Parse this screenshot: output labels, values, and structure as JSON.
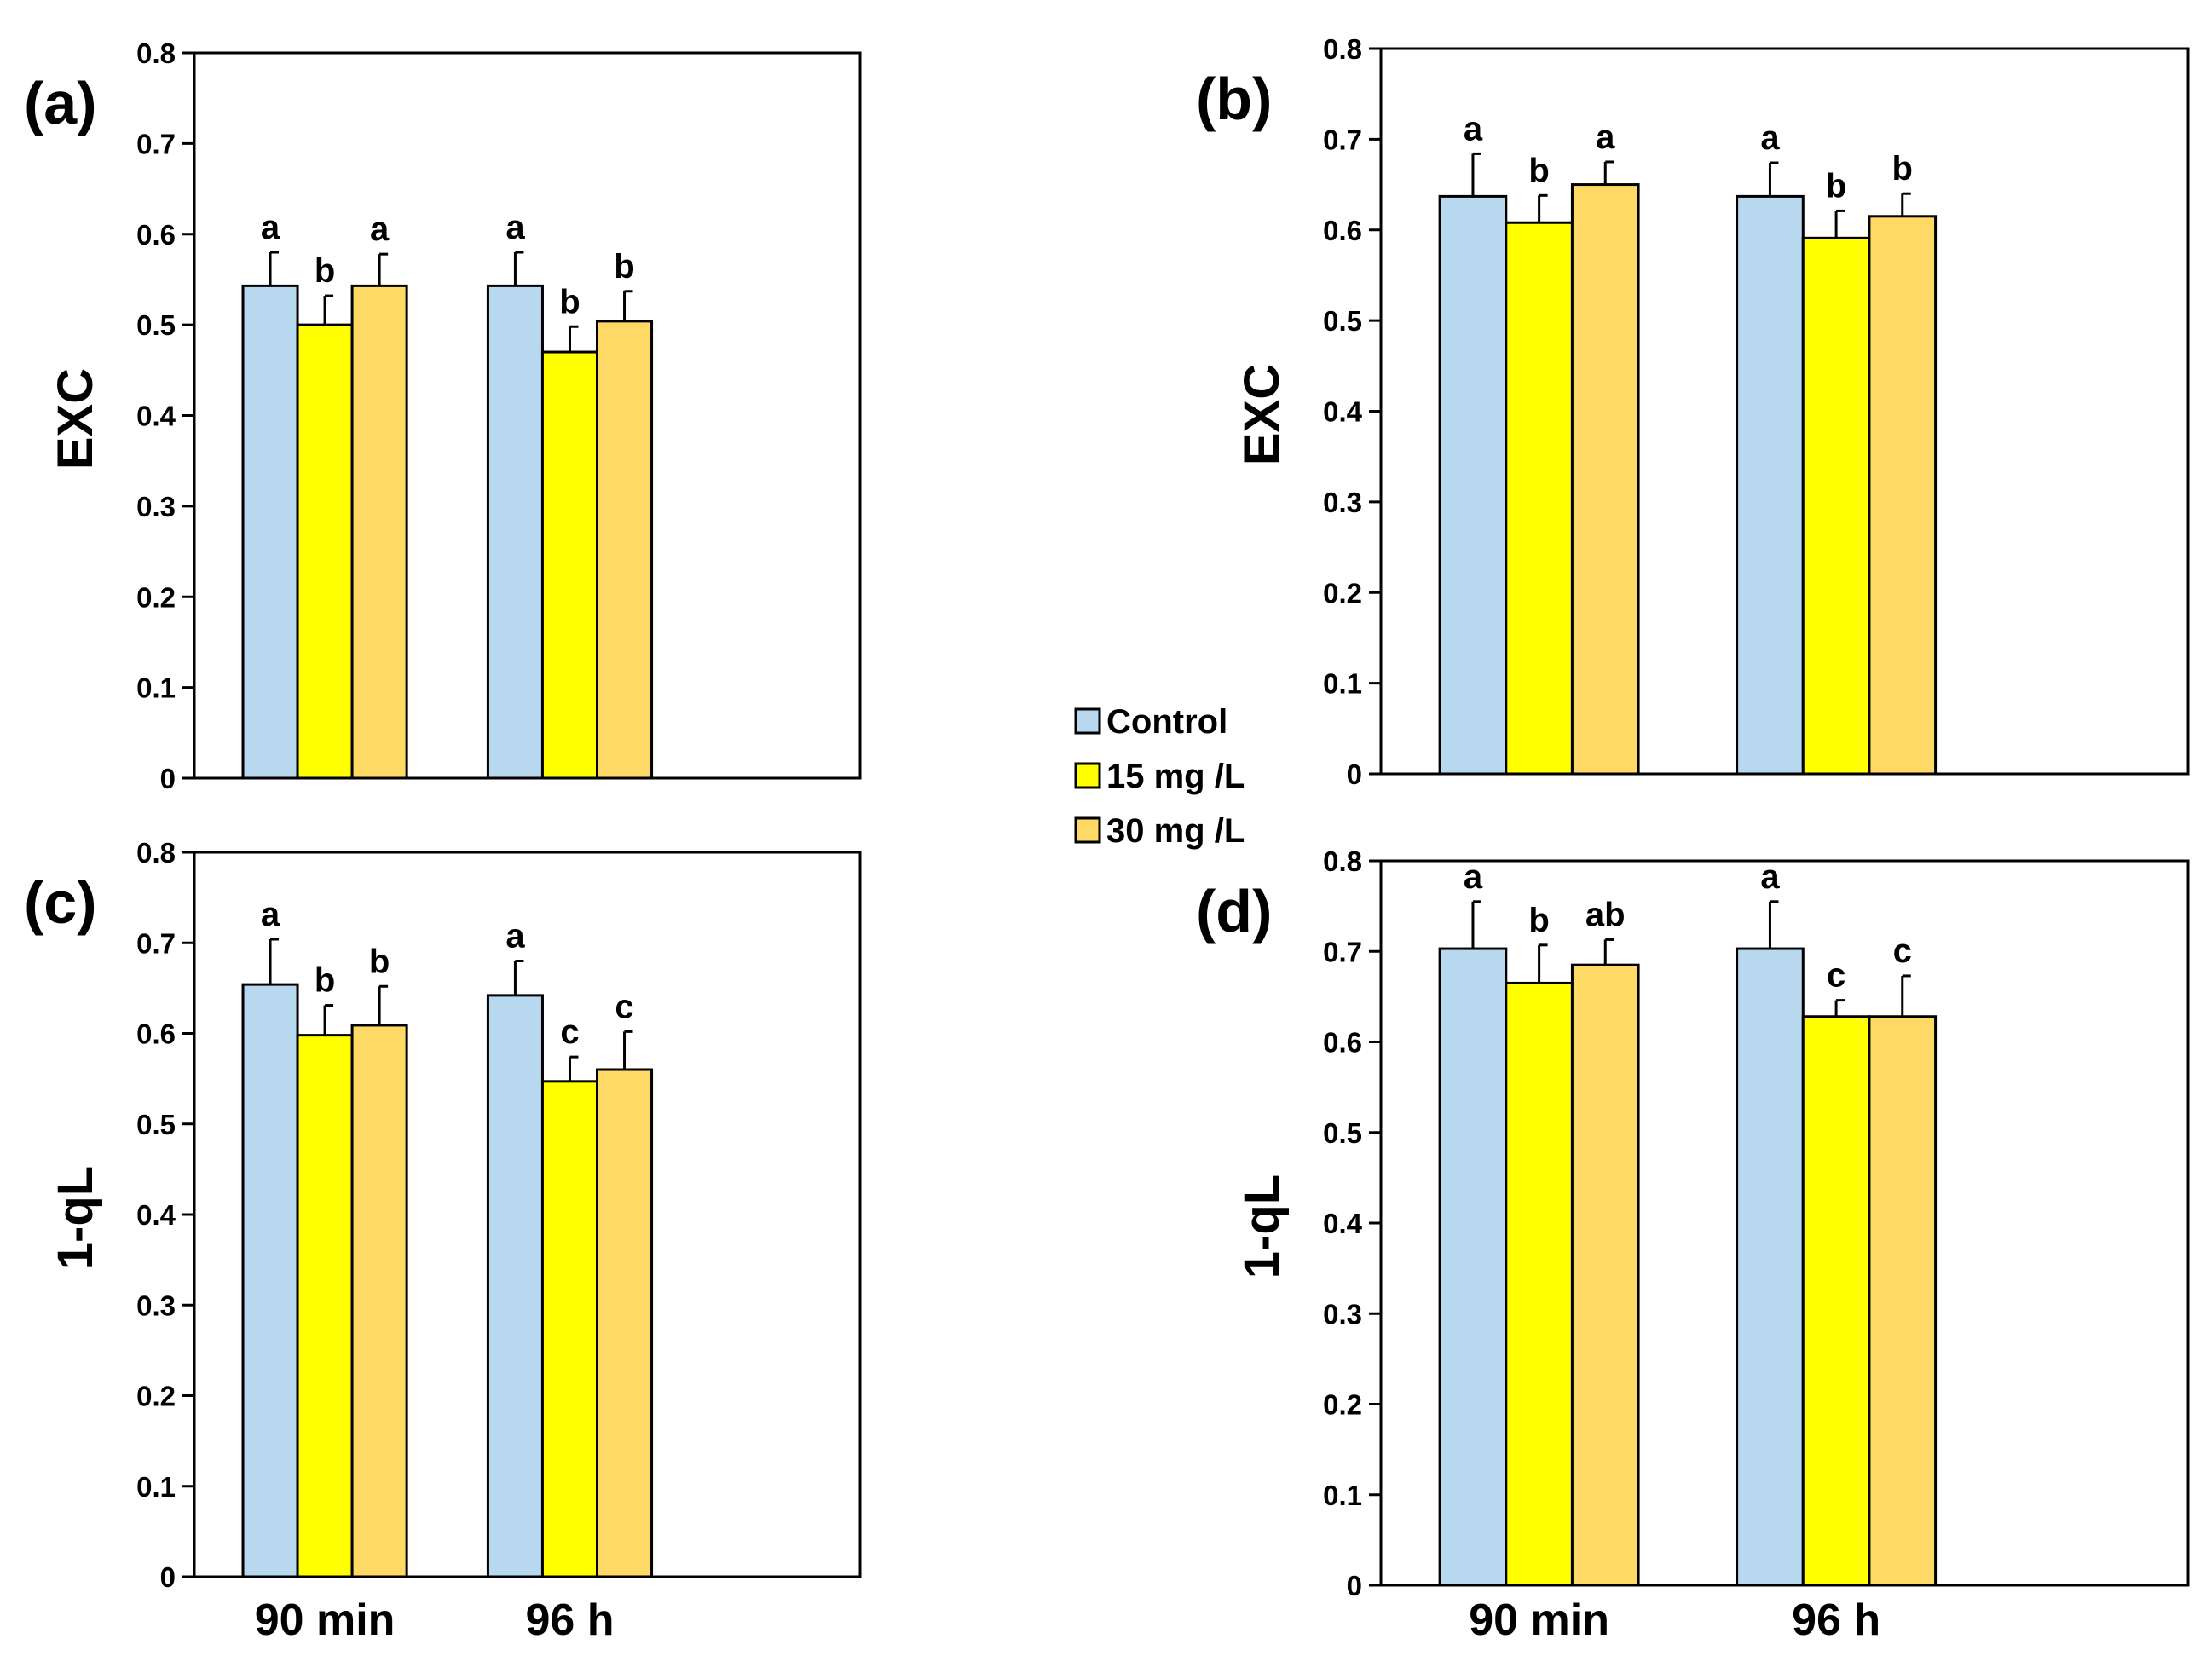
{
  "chart_data": [
    {
      "type": "bar",
      "panel_label": "(a)",
      "ylabel": "EXC",
      "categories": [
        "90 min",
        "96 h"
      ],
      "ylim": [
        0,
        0.8
      ],
      "yticks": [
        "0",
        "0.1",
        "0.2",
        "0.3",
        "0.4",
        "0.5",
        "0.6",
        "0.7",
        "0.8"
      ],
      "show_xticks": false,
      "series": [
        {
          "name": "Control",
          "values": [
            0.543,
            0.543
          ],
          "errors": [
            0.037,
            0.037
          ],
          "letters": [
            "a",
            "a"
          ]
        },
        {
          "name": "15 mg /L",
          "values": [
            0.5,
            0.47
          ],
          "errors": [
            0.032,
            0.028
          ],
          "letters": [
            "b",
            "b"
          ]
        },
        {
          "name": "30 mg /L",
          "values": [
            0.543,
            0.504
          ],
          "errors": [
            0.035,
            0.033
          ],
          "letters": [
            "a",
            "b"
          ]
        }
      ]
    },
    {
      "type": "bar",
      "panel_label": "(b)",
      "ylabel": "EXC",
      "categories": [
        "90 min",
        "96 h"
      ],
      "ylim": [
        0,
        0.8
      ],
      "yticks": [
        "0",
        "0.1",
        "0.2",
        "0.3",
        "0.4",
        "0.5",
        "0.6",
        "0.7",
        "0.8"
      ],
      "show_xticks": false,
      "series": [
        {
          "name": "Control",
          "values": [
            0.637,
            0.637
          ],
          "errors": [
            0.047,
            0.037
          ],
          "letters": [
            "a",
            "a"
          ]
        },
        {
          "name": "15 mg /L",
          "values": [
            0.608,
            0.591
          ],
          "errors": [
            0.03,
            0.03
          ],
          "letters": [
            "b",
            "b"
          ]
        },
        {
          "name": "30 mg /L",
          "values": [
            0.65,
            0.615
          ],
          "errors": [
            0.025,
            0.025
          ],
          "letters": [
            "a",
            "b"
          ]
        }
      ]
    },
    {
      "type": "bar",
      "panel_label": "(c)",
      "ylabel": "1-qL",
      "categories": [
        "90 min",
        "96 h"
      ],
      "ylim": [
        0,
        0.8
      ],
      "yticks": [
        "0",
        "0.1",
        "0.2",
        "0.3",
        "0.4",
        "0.5",
        "0.6",
        "0.7",
        "0.8"
      ],
      "show_xticks": true,
      "series": [
        {
          "name": "Control",
          "values": [
            0.654,
            0.642
          ],
          "errors": [
            0.05,
            0.038
          ],
          "letters": [
            "a",
            "a"
          ]
        },
        {
          "name": "15 mg /L",
          "values": [
            0.598,
            0.547
          ],
          "errors": [
            0.033,
            0.027
          ],
          "letters": [
            "b",
            "c"
          ]
        },
        {
          "name": "30 mg /L",
          "values": [
            0.609,
            0.56
          ],
          "errors": [
            0.043,
            0.042
          ],
          "letters": [
            "b",
            "c"
          ]
        }
      ]
    },
    {
      "type": "bar",
      "panel_label": "(d)",
      "ylabel": "1-qL",
      "categories": [
        "90 min",
        "96 h"
      ],
      "ylim": [
        0,
        0.8
      ],
      "yticks": [
        "0",
        "0.1",
        "0.2",
        "0.3",
        "0.4",
        "0.5",
        "0.6",
        "0.7",
        "0.8"
      ],
      "show_xticks": true,
      "series": [
        {
          "name": "Control",
          "values": [
            0.703,
            0.703
          ],
          "errors": [
            0.052,
            0.052
          ],
          "letters": [
            "a",
            "a"
          ]
        },
        {
          "name": "15 mg /L",
          "values": [
            0.665,
            0.628
          ],
          "errors": [
            0.042,
            0.018
          ],
          "letters": [
            "b",
            "c"
          ]
        },
        {
          "name": "30 mg /L",
          "values": [
            0.685,
            0.628
          ],
          "errors": [
            0.028,
            0.045
          ],
          "letters": [
            "ab",
            "c"
          ]
        }
      ]
    }
  ],
  "legend": {
    "items": [
      {
        "label": "Control",
        "color": "#b7d8ee"
      },
      {
        "label": "15 mg /L",
        "color": "#ffff00"
      },
      {
        "label": "30 mg /L",
        "color": "#ffd966"
      }
    ]
  },
  "colors": {
    "Control": "#b7d8ee",
    "15 mg /L": "#ffff00",
    "30 mg /L": "#ffd966"
  }
}
